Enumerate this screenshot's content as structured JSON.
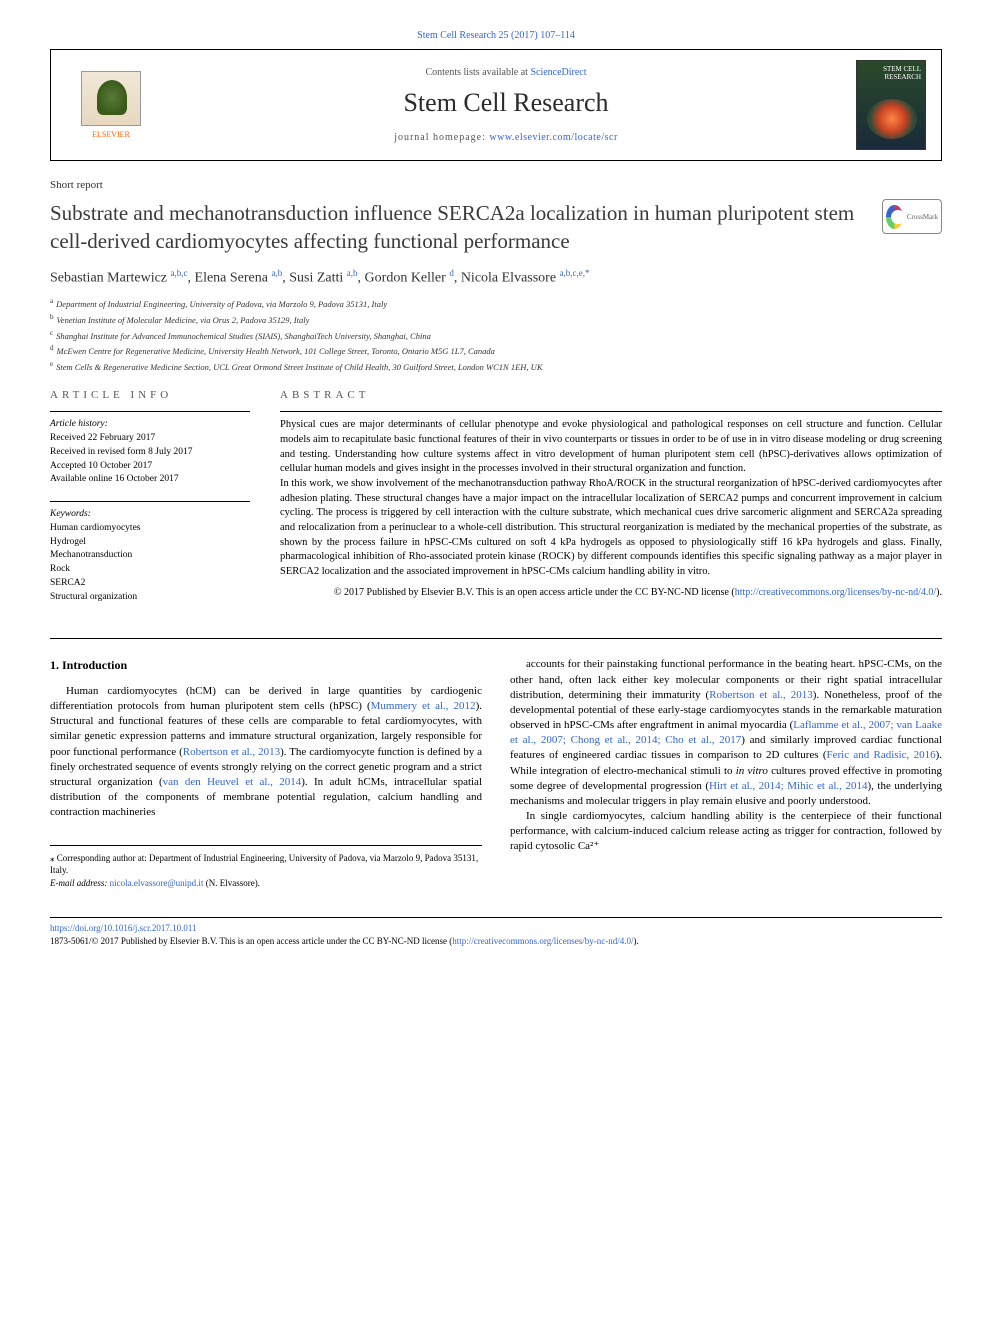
{
  "top_citation": "Stem Cell Research 25 (2017) 107–114",
  "header": {
    "elsevier_label": "ELSEVIER",
    "contents_prefix": "Contents lists available at ",
    "contents_link": "ScienceDirect",
    "journal_name": "Stem Cell Research",
    "homepage_prefix": "journal homepage: ",
    "homepage_url": "www.elsevier.com/locate/scr",
    "cover_text": "STEM\nCELL\nRESEARCH"
  },
  "article_type": "Short report",
  "title": "Substrate and mechanotransduction influence SERCA2a localization in human pluripotent stem cell-derived cardiomyocytes affecting functional performance",
  "crossmark_label": "CrossMark",
  "authors_html": "Sebastian Martewicz <sup class='author-link'>a,b,c</sup>, Elena Serena <sup class='author-link'>a,b</sup>, Susi Zatti <sup class='author-link'>a,b</sup>, Gordon Keller <sup class='author-link'>d</sup>, Nicola Elvassore <sup class='author-link'>a,b,c,e,</sup><sup>*</sup>",
  "affiliations": [
    {
      "key": "a",
      "text": "Department of Industrial Engineering, University of Padova, via Marzolo 9, Padova 35131, Italy"
    },
    {
      "key": "b",
      "text": "Venetian Institute of Molecular Medicine, via Orus 2, Padova 35129, Italy"
    },
    {
      "key": "c",
      "text": "Shanghai Institute for Advanced Immunochemical Studies (SIAIS), ShanghaiTech University, Shanghai, China"
    },
    {
      "key": "d",
      "text": "McEwen Centre for Regenerative Medicine, University Health Network, 101 College Street, Toronto, Ontario M5G 1L7, Canada"
    },
    {
      "key": "e",
      "text": "Stem Cells & Regenerative Medicine Section, UCL Great Ormond Street Institute of Child Health, 30 Guilford Street, London WC1N 1EH, UK"
    }
  ],
  "info": {
    "header": "article info",
    "history_label": "Article history:",
    "received": "Received 22 February 2017",
    "revised": "Received in revised form 8 July 2017",
    "accepted": "Accepted 10 October 2017",
    "online": "Available online 16 October 2017",
    "keywords_label": "Keywords:",
    "keywords": [
      "Human cardiomyocytes",
      "Hydrogel",
      "Mechanotransduction",
      "Rock",
      "SERCA2",
      "Structural organization"
    ]
  },
  "abstract": {
    "header": "abstract",
    "p1": "Physical cues are major determinants of cellular phenotype and evoke physiological and pathological responses on cell structure and function. Cellular models aim to recapitulate basic functional features of their in vivo counterparts or tissues in order to be of use in in vitro disease modeling or drug screening and testing. Understanding how culture systems affect in vitro development of human pluripotent stem cell (hPSC)-derivatives allows optimization of cellular human models and gives insight in the processes involved in their structural organization and function.",
    "p2": "In this work, we show involvement of the mechanotransduction pathway RhoA/ROCK in the structural reorganization of hPSC-derived cardiomyocytes after adhesion plating. These structural changes have a major impact on the intracellular localization of SERCA2 pumps and concurrent improvement in calcium cycling. The process is triggered by cell interaction with the culture substrate, which mechanical cues drive sarcomeric alignment and SERCA2a spreading and relocalization from a perinuclear to a whole-cell distribution. This structural reorganization is mediated by the mechanical properties of the substrate, as shown by the process failure in hPSC-CMs cultured on soft 4 kPa hydrogels as opposed to physiologically stiff 16 kPa hydrogels and glass. Finally, pharmacological inhibition of Rho-associated protein kinase (ROCK) by different compounds identifies this specific signaling pathway as a major player in SERCA2 localization and the associated improvement in hPSC-CMs calcium handling ability in vitro.",
    "copyright": "© 2017 Published by Elsevier B.V. This is an open access article under the CC BY-NC-ND license (",
    "cc_link": "http://creativecommons.org/licenses/by-nc-nd/4.0/",
    "copyright_suffix": ")."
  },
  "body": {
    "section_heading": "1. Introduction",
    "col1_p1": "Human cardiomyocytes (hCM) can be derived in large quantities by cardiogenic differentiation protocols from human pluripotent stem cells (hPSC) (<a>Mummery et al., 2012</a>). Structural and functional features of these cells are comparable to fetal cardiomyocytes, with similar genetic expression patterns and immature structural organization, largely responsible for poor functional performance (<a>Robertson et al., 2013</a>). The cardiomyocyte function is defined by a finely orchestrated sequence of events strongly relying on the correct genetic program and a strict structural organization (<a>van den Heuvel et al., 2014</a>). In adult hCMs, intracellular spatial distribution of the components of membrane potential regulation, calcium handling and contraction machineries",
    "col2_p1": "accounts for their painstaking functional performance in the beating heart. hPSC-CMs, on the other hand, often lack either key molecular components or their right spatial intracellular distribution, determining their immaturity (<a>Robertson et al., 2013</a>). Nonetheless, proof of the developmental potential of these early-stage cardiomyocytes stands in the remarkable maturation observed in hPSC-CMs after engraftment in animal myocardia (<a>Laflamme et al., 2007; van Laake et al., 2007; Chong et al., 2014; Cho et al., 2017</a>) and similarly improved cardiac functional features of engineered cardiac tissues in comparison to 2D cultures (<a>Feric and Radisic, 2016</a>). While integration of electro-mechanical stimuli to <em>in vitro</em> cultures proved effective in promoting some degree of developmental progression (<a>Hirt et al., 2014; Mihic et al., 2014</a>), the underlying mechanisms and molecular triggers in play remain elusive and poorly understood.",
    "col2_p2": "In single cardiomyocytes, calcium handling ability is the centerpiece of their functional performance, with calcium-induced calcium release acting as trigger for contraction, followed by rapid cytosolic Ca²⁺"
  },
  "corresponding": {
    "star": "⁎",
    "text": "Corresponding author at: Department of Industrial Engineering, University of Padova, via Marzolo 9, Padova 35131, Italy.",
    "email_label": "E-mail address: ",
    "email": "nicola.elvassore@unipd.it",
    "email_suffix": " (N. Elvassore)."
  },
  "footer": {
    "doi": "https://doi.org/10.1016/j.scr.2017.10.011",
    "issn_line": "1873-5061/© 2017 Published by Elsevier B.V. This is an open access article under the CC BY-NC-ND license (",
    "cc_link": "http://creativecommons.org/licenses/by-nc-nd/4.0/",
    "suffix": ")."
  },
  "colors": {
    "link": "#3366cc",
    "text": "#000000",
    "muted": "#555555",
    "elsevier_orange": "#ff6600"
  }
}
